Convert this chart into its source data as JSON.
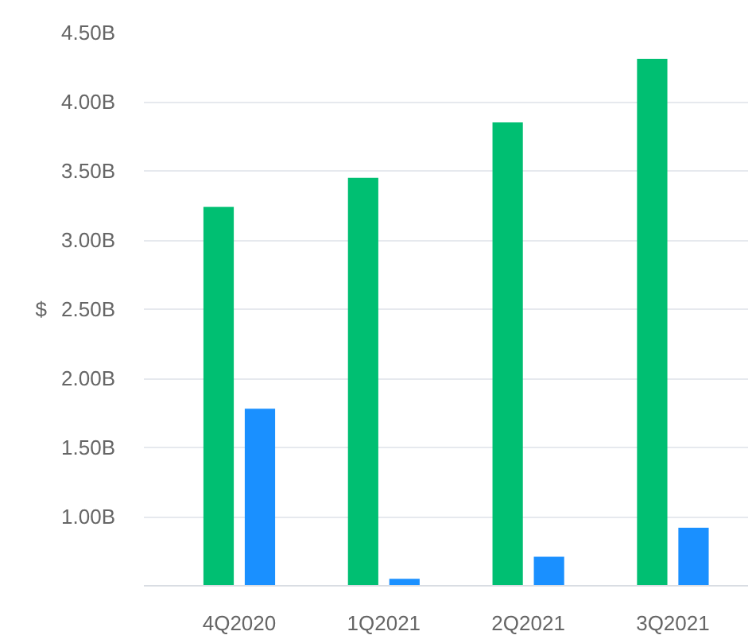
{
  "chart_data": {
    "type": "bar",
    "ylabel": "$",
    "categories": [
      "4Q2020",
      "1Q2021",
      "2Q2021",
      "3Q2021"
    ],
    "series": [
      {
        "color": "#00bf72",
        "values": [
          3.24,
          3.45,
          3.85,
          4.31
        ]
      },
      {
        "color": "#1a90ff",
        "values": [
          1.78,
          0.55,
          0.71,
          0.92
        ]
      }
    ],
    "ylim": [
      0.5,
      4.5
    ],
    "yticks": [
      {
        "value": 1.0,
        "label": "1.00B"
      },
      {
        "value": 1.5,
        "label": "1.50B"
      },
      {
        "value": 2.0,
        "label": "2.00B"
      },
      {
        "value": 2.5,
        "label": "2.50B"
      },
      {
        "value": 3.0,
        "label": "3.00B"
      },
      {
        "value": 3.5,
        "label": "3.50B"
      },
      {
        "value": 4.0,
        "label": "4.00B"
      },
      {
        "value": 4.5,
        "label": "4.50B"
      }
    ],
    "grid": "y"
  }
}
